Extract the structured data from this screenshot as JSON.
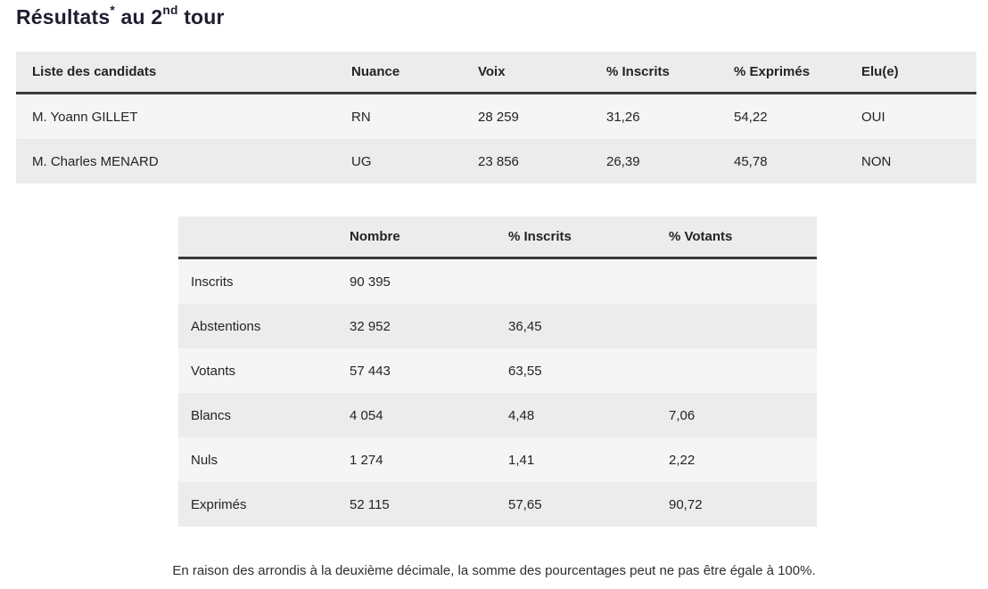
{
  "title": {
    "text": "Résultats",
    "asterisk": "*",
    "mid": " au 2",
    "ordinal": "nd",
    "end": " tour"
  },
  "candidates_table": {
    "headers": [
      "Liste des candidats",
      "Nuance",
      "Voix",
      "% Inscrits",
      "% Exprimés",
      "Elu(e)"
    ],
    "rows": [
      {
        "name": "M. Yoann GILLET",
        "nuance": "RN",
        "voix": "28 259",
        "pct_inscrits": "31,26",
        "pct_exprimes": "54,22",
        "elu": "OUI"
      },
      {
        "name": "M. Charles MENARD",
        "nuance": "UG",
        "voix": "23 856",
        "pct_inscrits": "26,39",
        "pct_exprimes": "45,78",
        "elu": "NON"
      }
    ]
  },
  "participation_table": {
    "headers": [
      "",
      "Nombre",
      "% Inscrits",
      "% Votants"
    ],
    "rows": [
      {
        "label": "Inscrits",
        "nombre": "90 395",
        "pct_inscrits": "",
        "pct_votants": ""
      },
      {
        "label": "Abstentions",
        "nombre": "32 952",
        "pct_inscrits": "36,45",
        "pct_votants": ""
      },
      {
        "label": "Votants",
        "nombre": "57 443",
        "pct_inscrits": "63,55",
        "pct_votants": ""
      },
      {
        "label": "Blancs",
        "nombre": "4 054",
        "pct_inscrits": "4,48",
        "pct_votants": "7,06"
      },
      {
        "label": "Nuls",
        "nombre": "1 274",
        "pct_inscrits": "1,41",
        "pct_votants": "2,22"
      },
      {
        "label": "Exprimés",
        "nombre": "52 115",
        "pct_inscrits": "57,65",
        "pct_votants": "90,72"
      }
    ]
  },
  "footnote": "En raison des arrondis à la deuxième décimale, la somme des pourcentages peut ne pas être égale à 100%.",
  "colors": {
    "header_bg": "#ececec",
    "row_odd": "#f5f5f5",
    "row_even": "#ececec",
    "header_border": "#3a3a3a",
    "title_text": "#1e1e30",
    "body_text": "#242424"
  }
}
